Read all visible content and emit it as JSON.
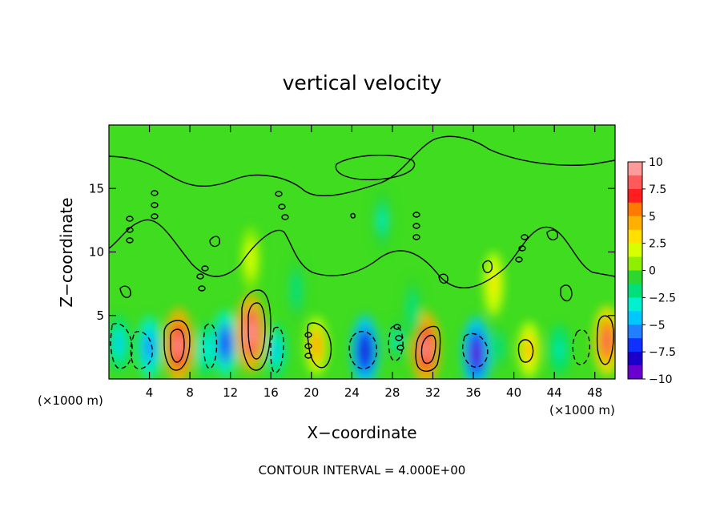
{
  "chart_data": {
    "type": "heatmap",
    "title": "vertical velocity",
    "xlabel": "X−coordinate",
    "ylabel": "Z−coordinate",
    "x_unit_left": "(×1000 m)",
    "x_unit_right": "(×1000 m)",
    "footer": "CONTOUR INTERVAL = 4.000E+00",
    "xlim": [
      0,
      50
    ],
    "ylim": [
      0,
      20
    ],
    "x_ticks": [
      "4",
      "8",
      "12",
      "16",
      "20",
      "24",
      "28",
      "32",
      "36",
      "40",
      "44",
      "48"
    ],
    "y_ticks": [
      "5",
      "10",
      "15"
    ],
    "colorbar": {
      "range": [
        -10,
        10
      ],
      "labels": [
        "10",
        "7.5",
        "5",
        "2.5",
        "0",
        "−2.5",
        "−5",
        "−7.5",
        "−10"
      ],
      "colors": [
        "#ff9a9a",
        "#ff5a5a",
        "#ff1e1e",
        "#ff7a00",
        "#ffb000",
        "#ffe000",
        "#d8ff00",
        "#8ef000",
        "#2ed72e",
        "#00e07a",
        "#00f0d0",
        "#00c8ff",
        "#2080ff",
        "#1030ff",
        "#1a00c8",
        "#6a00d0"
      ]
    },
    "features": [
      {
        "x": 1.0,
        "z": 2.8,
        "value": -4.5
      },
      {
        "x": 4.0,
        "z": 2.5,
        "value": -6.0
      },
      {
        "x": 6.9,
        "z": 2.6,
        "value": 9.5
      },
      {
        "x": 9.5,
        "z": 2.3,
        "value": -3.5
      },
      {
        "x": 11.5,
        "z": 2.8,
        "value": -7.0
      },
      {
        "x": 14.0,
        "z": 3.6,
        "value": 10.0
      },
      {
        "x": 16.5,
        "z": 2.2,
        "value": -4.5
      },
      {
        "x": 20.5,
        "z": 2.6,
        "value": 5.0
      },
      {
        "x": 25.3,
        "z": 2.2,
        "value": -8.5
      },
      {
        "x": 28.5,
        "z": 3.0,
        "value": -2.5
      },
      {
        "x": 31.3,
        "z": 2.4,
        "value": 9.0
      },
      {
        "x": 36.3,
        "z": 2.0,
        "value": -9.0
      },
      {
        "x": 38.5,
        "z": 2.5,
        "value": -2.0
      },
      {
        "x": 41.5,
        "z": 2.3,
        "value": 4.5
      },
      {
        "x": 44.5,
        "z": 2.3,
        "value": -3.0
      },
      {
        "x": 49.2,
        "z": 3.0,
        "value": 8.0
      },
      {
        "x": 27.0,
        "z": 12.5,
        "value": -2.5
      },
      {
        "x": 14.0,
        "z": 9.5,
        "value": 2.5
      },
      {
        "x": 18.5,
        "z": 7.0,
        "value": -2.0
      },
      {
        "x": 38.0,
        "z": 7.5,
        "value": 3.0
      },
      {
        "x": 30.0,
        "z": 5.5,
        "value": -2.0
      }
    ]
  }
}
